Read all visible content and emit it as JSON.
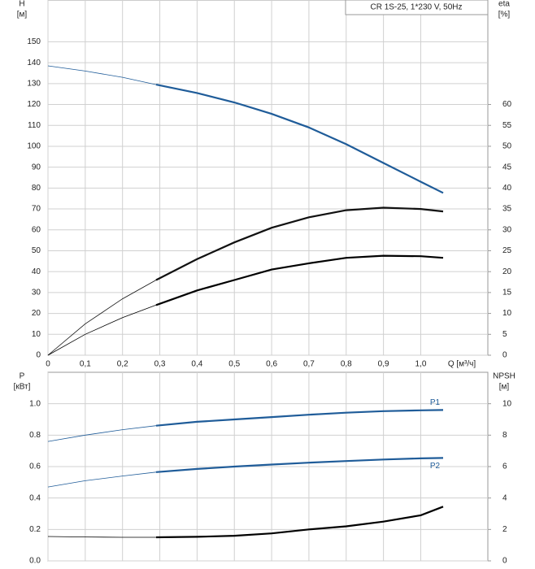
{
  "chart_data": [
    {
      "type": "line",
      "title": "CR 1S-25, 1*230 V, 50Hz",
      "ylabel": [
        "H",
        "[м]"
      ],
      "y2label": [
        "eta",
        "[%]"
      ],
      "xlabel": "Q [м³/ч]",
      "x": [
        0,
        0.1,
        0.2,
        0.29,
        0.4,
        0.5,
        0.6,
        0.7,
        0.8,
        0.9,
        1.0,
        1.06
      ],
      "thick_from_x": 0.29,
      "series": [
        {
          "color": "#1f5c99",
          "axis": "y",
          "values": [
            138.5,
            136,
            133,
            129.5,
            125.5,
            121,
            115.5,
            109,
            101,
            92,
            83,
            77.7
          ]
        },
        {
          "color": "#111111",
          "axis": "y2",
          "values": [
            0,
            7.5,
            13.5,
            18,
            23,
            27,
            30.5,
            33,
            34.7,
            35.3,
            35,
            34.4
          ]
        },
        {
          "color": "#000000",
          "axis": "y2",
          "values": [
            0,
            5,
            9,
            12,
            15.5,
            18,
            20.5,
            22,
            23.3,
            23.8,
            23.7,
            23.3
          ]
        }
      ],
      "xlim": [
        0,
        1.18
      ],
      "xticks": [
        0,
        {
          "value": 0.1,
          "label": "0,1"
        },
        {
          "value": 0.2,
          "label": "0,2"
        },
        {
          "value": 0.3,
          "label": "0,3"
        },
        {
          "value": 0.4,
          "label": "0,4"
        },
        {
          "value": 0.5,
          "label": "0,5"
        },
        {
          "value": 0.6,
          "label": "0,6"
        },
        {
          "value": 0.7,
          "label": "0,7"
        },
        {
          "value": 0.8,
          "label": "0,8"
        },
        {
          "value": 0.9,
          "label": "0,9"
        },
        {
          "value": 1.0,
          "label": "1,0"
        }
      ],
      "ylim": [
        0,
        170
      ],
      "yticks": [
        0,
        10,
        20,
        30,
        40,
        50,
        60,
        70,
        80,
        90,
        100,
        110,
        120,
        130,
        140,
        150
      ],
      "y2lim": [
        0,
        85
      ],
      "y2ticks": [
        0,
        5,
        10,
        15,
        20,
        25,
        30,
        35,
        40,
        45,
        50,
        55,
        60
      ],
      "grid": true
    },
    {
      "type": "line",
      "ylabel": [
        "P",
        "[кВт]"
      ],
      "y2label": [
        "NPSH",
        "[м]"
      ],
      "x": [
        0,
        0.1,
        0.2,
        0.29,
        0.4,
        0.5,
        0.6,
        0.7,
        0.8,
        0.9,
        1.0,
        1.06
      ],
      "thick_from_x": 0.29,
      "series": [
        {
          "name": "P1",
          "label_side": "above",
          "color": "#1f5c99",
          "axis": "y",
          "values": [
            0.76,
            0.8,
            0.835,
            0.86,
            0.885,
            0.9,
            0.915,
            0.93,
            0.943,
            0.953,
            0.958,
            0.96
          ]
        },
        {
          "name": "P2",
          "label_side": "below",
          "color": "#1f5c99",
          "axis": "y",
          "values": [
            0.47,
            0.51,
            0.54,
            0.565,
            0.585,
            0.6,
            0.613,
            0.625,
            0.635,
            0.645,
            0.652,
            0.655
          ]
        },
        {
          "color": "#000000",
          "axis": "y2",
          "values": [
            1.55,
            1.52,
            1.5,
            1.5,
            1.53,
            1.6,
            1.75,
            2.0,
            2.2,
            2.5,
            2.9,
            3.45
          ]
        }
      ],
      "xlim": [
        0,
        1.18
      ],
      "xticks": [
        0,
        0.1,
        0.2,
        0.3,
        0.4,
        0.5,
        0.6,
        0.7,
        0.8,
        0.9,
        1.0
      ],
      "ylim": [
        0,
        1.2
      ],
      "yticks": [
        {
          "value": 0,
          "label": "0.0"
        },
        0.2,
        0.4,
        0.6,
        0.8,
        {
          "value": 1,
          "label": "1.0"
        }
      ],
      "y2lim": [
        0,
        12
      ],
      "y2ticks": [
        0,
        2,
        4,
        6,
        8,
        10
      ],
      "grid": true
    }
  ]
}
